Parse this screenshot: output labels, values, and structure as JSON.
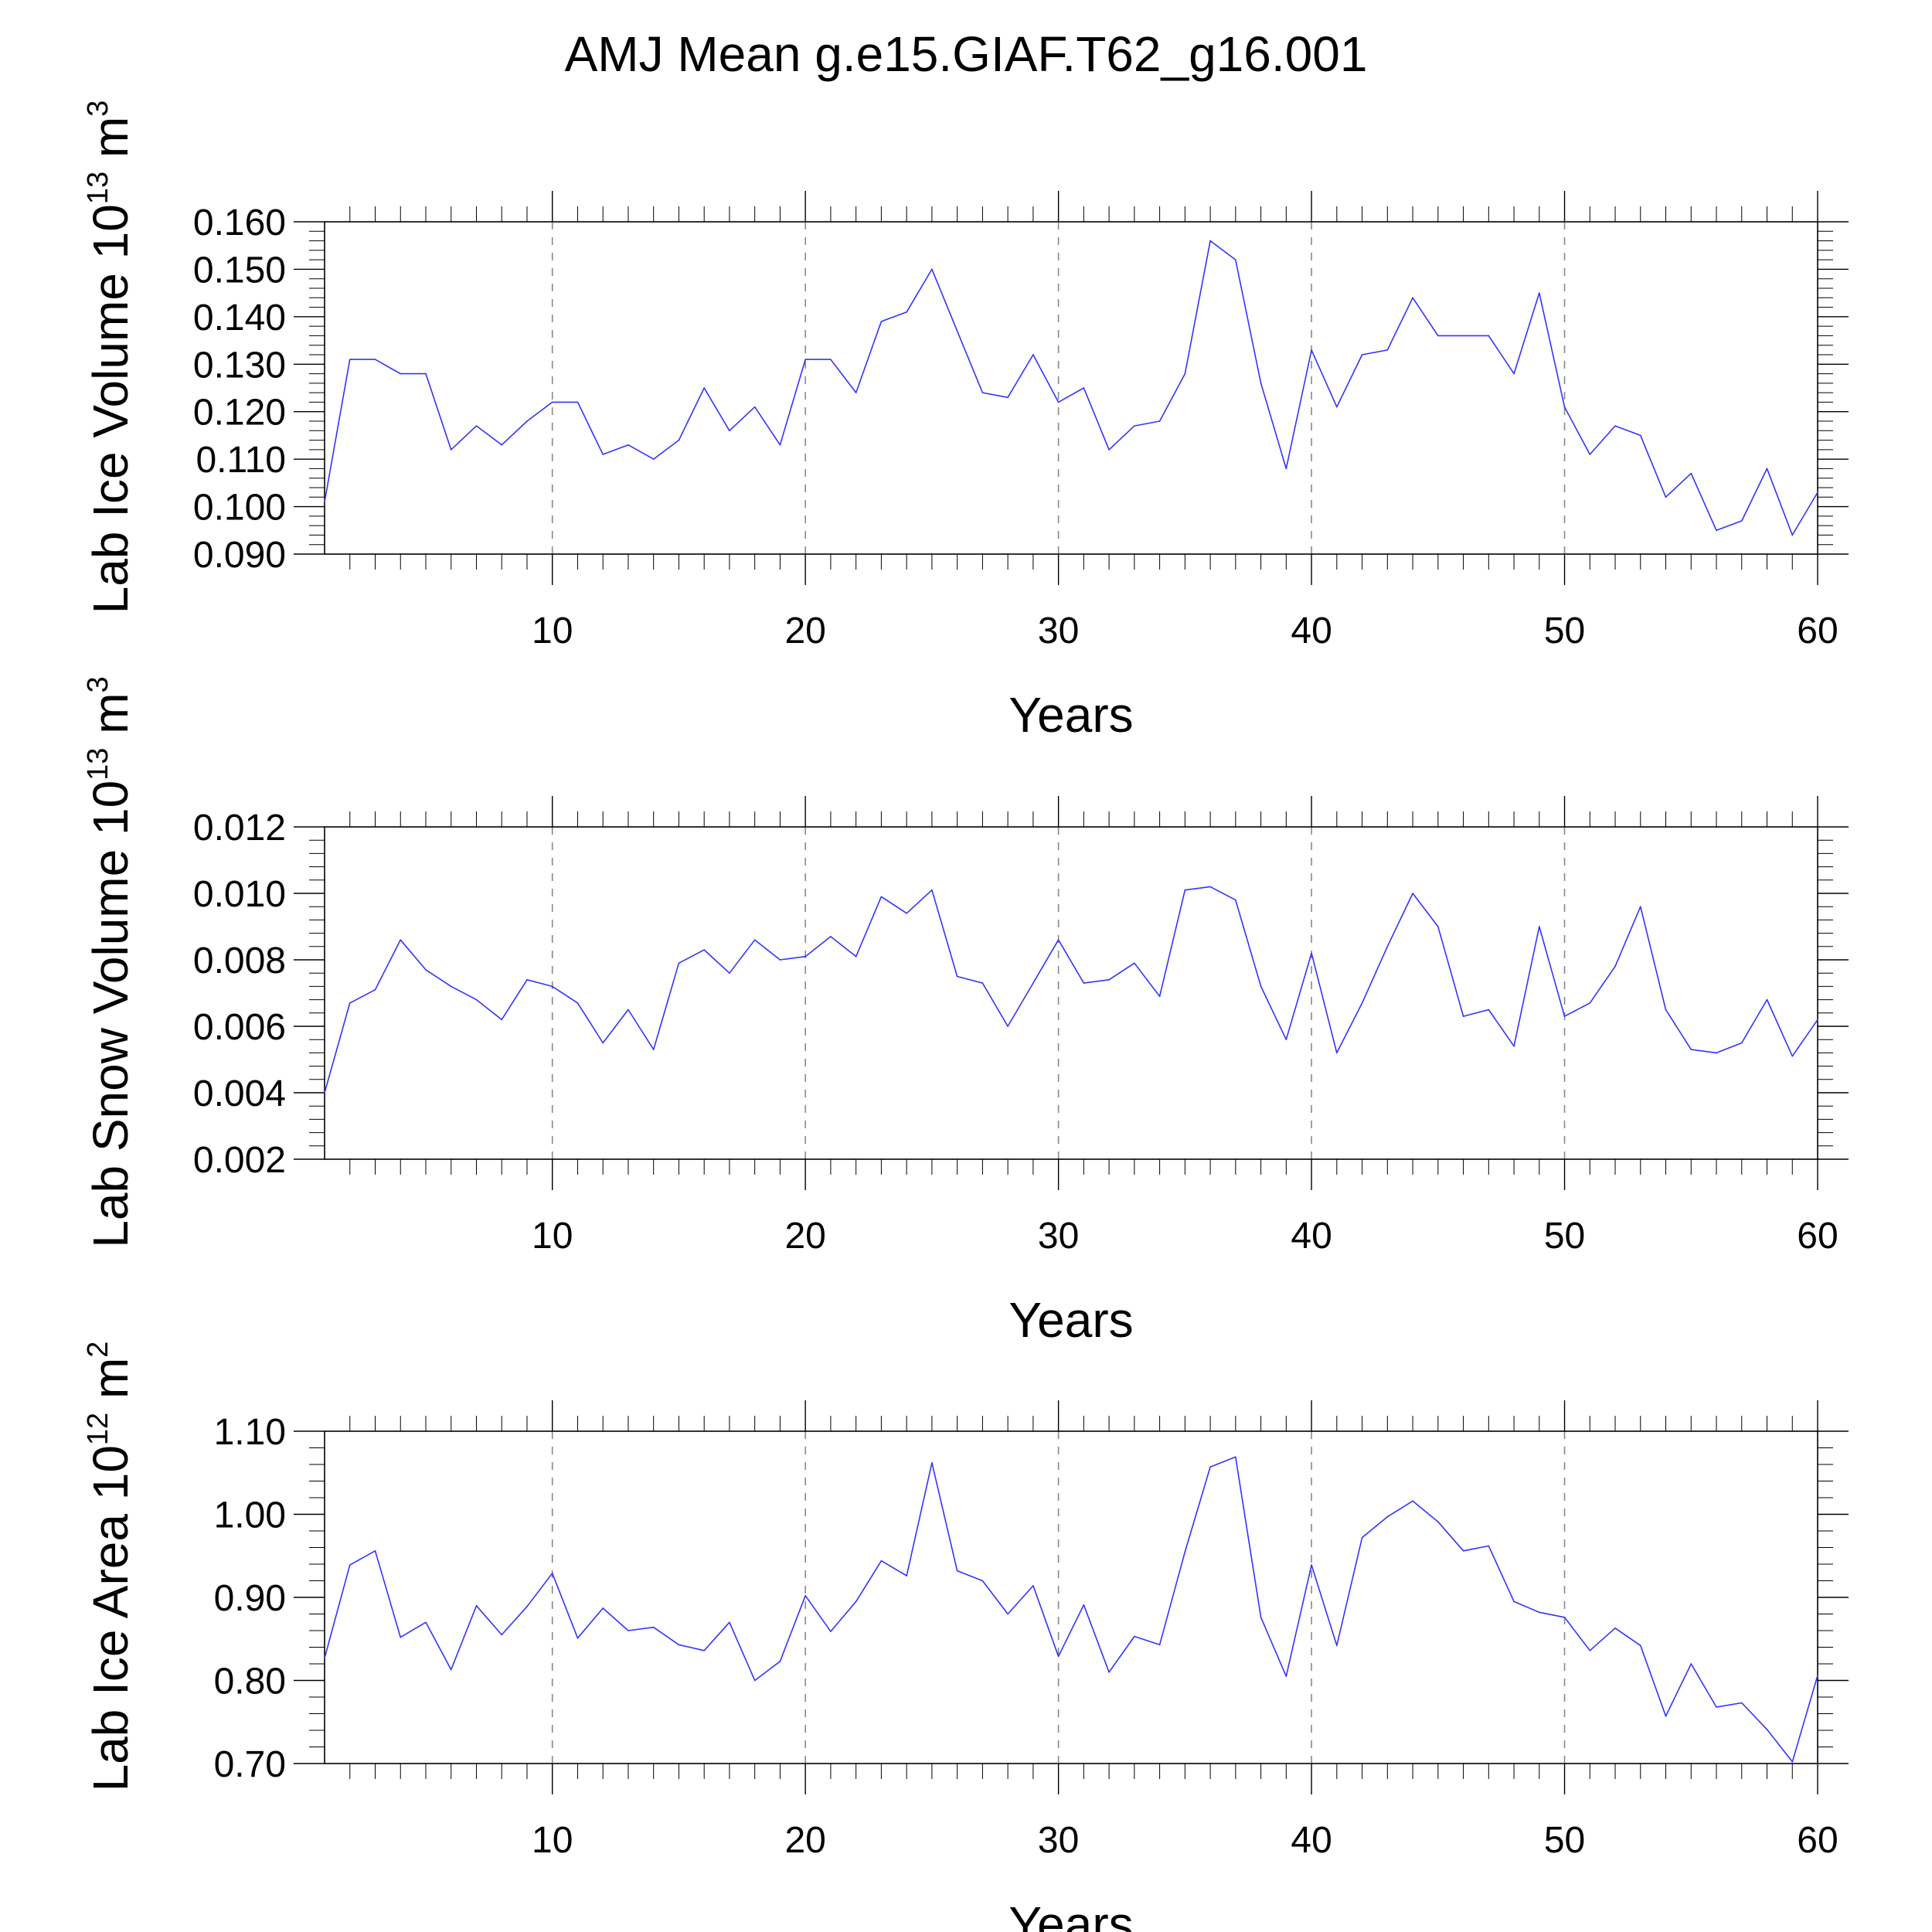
{
  "title": "AMJ Mean g.e15.GIAF.T62_g16.001",
  "line_color": "#3333ff",
  "chart_data": [
    {
      "type": "line",
      "id": "ice-volume",
      "ylabel": "Lab Ice Volume 10",
      "ylabel_exp": "13",
      "ylabel_unit": " m",
      "ylabel_unit_exp": "3",
      "xlabel": "Years",
      "xlim": [
        1,
        60
      ],
      "ylim": [
        0.09,
        0.16
      ],
      "xticks": [
        10,
        20,
        30,
        40,
        50,
        60
      ],
      "yticks": [
        "0.090",
        "0.100",
        "0.110",
        "0.120",
        "0.130",
        "0.140",
        "0.150",
        "0.160"
      ],
      "x": [
        1,
        2,
        3,
        4,
        5,
        6,
        7,
        8,
        9,
        10,
        11,
        12,
        13,
        14,
        15,
        16,
        17,
        18,
        19,
        20,
        21,
        22,
        23,
        24,
        25,
        26,
        27,
        28,
        29,
        30,
        31,
        32,
        33,
        34,
        35,
        36,
        37,
        38,
        39,
        40,
        41,
        42,
        43,
        44,
        45,
        46,
        47,
        48,
        49,
        50,
        51,
        52,
        53,
        54,
        55,
        56,
        57,
        58,
        59,
        60
      ],
      "values": [
        0.101,
        0.131,
        0.131,
        0.128,
        0.128,
        0.112,
        0.117,
        0.113,
        0.118,
        0.122,
        0.122,
        0.111,
        0.113,
        0.11,
        0.114,
        0.125,
        0.116,
        0.121,
        0.113,
        0.131,
        0.131,
        0.124,
        0.139,
        0.141,
        0.15,
        0.137,
        0.124,
        0.123,
        0.132,
        0.122,
        0.125,
        0.112,
        0.117,
        0.118,
        0.128,
        0.156,
        0.152,
        0.126,
        0.108,
        0.133,
        0.121,
        0.132,
        0.133,
        0.144,
        0.136,
        0.136,
        0.136,
        0.128,
        0.145,
        0.121,
        0.111,
        0.117,
        0.115,
        0.102,
        0.107,
        0.095,
        0.097,
        0.108,
        0.094,
        0.103
      ]
    },
    {
      "type": "line",
      "id": "snow-volume",
      "ylabel": "Lab Snow Volume 10",
      "ylabel_exp": "13",
      "ylabel_unit": " m",
      "ylabel_unit_exp": "3",
      "xlabel": "Years",
      "xlim": [
        1,
        60
      ],
      "ylim": [
        0.002,
        0.012
      ],
      "xticks": [
        10,
        20,
        30,
        40,
        50,
        60
      ],
      "yticks": [
        "0.002",
        "0.004",
        "0.006",
        "0.008",
        "0.010",
        "0.012"
      ],
      "x": [
        1,
        2,
        3,
        4,
        5,
        6,
        7,
        8,
        9,
        10,
        11,
        12,
        13,
        14,
        15,
        16,
        17,
        18,
        19,
        20,
        21,
        22,
        23,
        24,
        25,
        26,
        27,
        28,
        29,
        30,
        31,
        32,
        33,
        34,
        35,
        36,
        37,
        38,
        39,
        40,
        41,
        42,
        43,
        44,
        45,
        46,
        47,
        48,
        49,
        50,
        51,
        52,
        53,
        54,
        55,
        56,
        57,
        58,
        59,
        60
      ],
      "values": [
        0.004,
        0.0067,
        0.0071,
        0.0086,
        0.0077,
        0.0072,
        0.0068,
        0.0062,
        0.0074,
        0.0072,
        0.0067,
        0.0055,
        0.0065,
        0.0053,
        0.0079,
        0.0083,
        0.0076,
        0.0086,
        0.008,
        0.0081,
        0.0087,
        0.0081,
        0.0099,
        0.0094,
        0.0101,
        0.0075,
        0.0073,
        0.006,
        0.0073,
        0.0086,
        0.0073,
        0.0074,
        0.0079,
        0.0069,
        0.0101,
        0.0102,
        0.0098,
        0.0072,
        0.0056,
        0.0082,
        0.0052,
        0.0067,
        0.0084,
        0.01,
        0.009,
        0.0063,
        0.0065,
        0.0054,
        0.009,
        0.0063,
        0.0067,
        0.0078,
        0.0096,
        0.0065,
        0.0053,
        0.0052,
        0.0055,
        0.0068,
        0.0051,
        0.0062
      ]
    },
    {
      "type": "line",
      "id": "ice-area",
      "ylabel": "Lab Ice Area 10",
      "ylabel_exp": "12",
      "ylabel_unit": " m",
      "ylabel_unit_exp": "2",
      "xlabel": "Years",
      "xlim": [
        1,
        60
      ],
      "ylim": [
        0.7,
        1.1
      ],
      "xticks": [
        10,
        20,
        30,
        40,
        50,
        60
      ],
      "yticks": [
        "0.70",
        "0.80",
        "0.90",
        "1.00",
        "1.10"
      ],
      "x": [
        1,
        2,
        3,
        4,
        5,
        6,
        7,
        8,
        9,
        10,
        11,
        12,
        13,
        14,
        15,
        16,
        17,
        18,
        19,
        20,
        21,
        22,
        23,
        24,
        25,
        26,
        27,
        28,
        29,
        30,
        31,
        32,
        33,
        34,
        35,
        36,
        37,
        38,
        39,
        40,
        41,
        42,
        43,
        44,
        45,
        46,
        47,
        48,
        49,
        50,
        51,
        52,
        53,
        54,
        55,
        56,
        57,
        58,
        59,
        60
      ],
      "values": [
        0.827,
        0.939,
        0.956,
        0.852,
        0.87,
        0.813,
        0.89,
        0.855,
        0.889,
        0.929,
        0.851,
        0.887,
        0.86,
        0.864,
        0.843,
        0.836,
        0.87,
        0.8,
        0.823,
        0.902,
        0.859,
        0.895,
        0.944,
        0.926,
        1.062,
        0.932,
        0.92,
        0.88,
        0.914,
        0.829,
        0.891,
        0.81,
        0.853,
        0.843,
        0.955,
        1.057,
        1.069,
        0.876,
        0.805,
        0.939,
        0.842,
        0.972,
        0.997,
        1.016,
        0.991,
        0.956,
        0.962,
        0.895,
        0.882,
        0.876,
        0.836,
        0.863,
        0.842,
        0.757,
        0.82,
        0.768,
        0.773,
        0.741,
        0.702,
        0.806
      ]
    }
  ]
}
